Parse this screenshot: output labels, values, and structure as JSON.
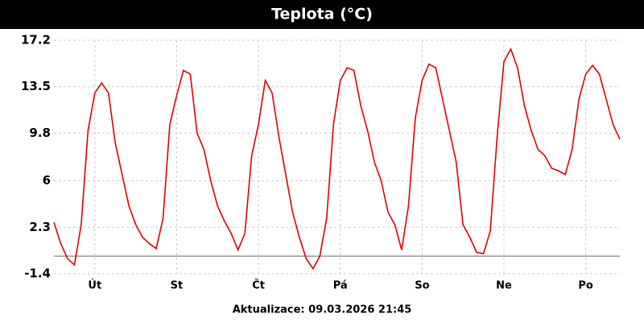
{
  "chart_data": {
    "type": "line",
    "title": "Teplota (°C)",
    "footer": "Aktualizace: 09.03.2026 21:45",
    "x": [
      0,
      2,
      4,
      6,
      8,
      10,
      12,
      14,
      16,
      18,
      20,
      22,
      24,
      26,
      28,
      30,
      32,
      34,
      36,
      38,
      40,
      42,
      44,
      46,
      48,
      50,
      52,
      54,
      56,
      58,
      60,
      62,
      64,
      66,
      68,
      70,
      72,
      74,
      76,
      78,
      80,
      82,
      84,
      86,
      88,
      90,
      92,
      94,
      96,
      98,
      100,
      102,
      104,
      106,
      108,
      110,
      112,
      114,
      116,
      118,
      120,
      122,
      124,
      126,
      128,
      130,
      132,
      134,
      136,
      138,
      140,
      142,
      144,
      146,
      148,
      150,
      152,
      154,
      156,
      158,
      160,
      162,
      164,
      166
    ],
    "series": [
      {
        "name": "Teplota",
        "color": "#e00000",
        "values": [
          2.7,
          1.0,
          -0.2,
          -0.7,
          2.5,
          10.0,
          13.0,
          13.8,
          13.0,
          9.0,
          6.5,
          4.0,
          2.5,
          1.5,
          1.0,
          0.6,
          3.0,
          10.5,
          12.8,
          14.8,
          14.5,
          9.8,
          8.5,
          6.0,
          4.0,
          2.8,
          1.8,
          0.5,
          1.8,
          8.0,
          10.5,
          14.0,
          13.0,
          9.5,
          6.5,
          3.5,
          1.5,
          -0.2,
          -1.0,
          0.0,
          3.0,
          10.5,
          14.0,
          15.0,
          14.8,
          12.0,
          10.0,
          7.5,
          6.0,
          3.5,
          2.5,
          0.5,
          4.0,
          11.0,
          14.0,
          15.3,
          15.0,
          12.5,
          10.0,
          7.5,
          2.5,
          1.5,
          0.3,
          0.2,
          2.0,
          9.5,
          15.5,
          16.5,
          15.0,
          12.0,
          10.0,
          8.5,
          8.0,
          7.0,
          6.8,
          6.5,
          8.5,
          12.5,
          14.5,
          15.2,
          14.5,
          12.5,
          10.5,
          9.3
        ]
      }
    ],
    "xlim": [
      0,
      166
    ],
    "xticks": [
      {
        "value": 12,
        "label": "Út"
      },
      {
        "value": 36,
        "label": "St"
      },
      {
        "value": 60,
        "label": "Čt"
      },
      {
        "value": 84,
        "label": "Pá"
      },
      {
        "value": 108,
        "label": "So"
      },
      {
        "value": 132,
        "label": "Ne"
      },
      {
        "value": 156,
        "label": "Po"
      }
    ],
    "ylim": [
      -1.4,
      17.2
    ],
    "yticks": [
      -1.4,
      2.3,
      6.0,
      9.8,
      13.5,
      17.2
    ],
    "grid": true,
    "zero_line": true
  }
}
